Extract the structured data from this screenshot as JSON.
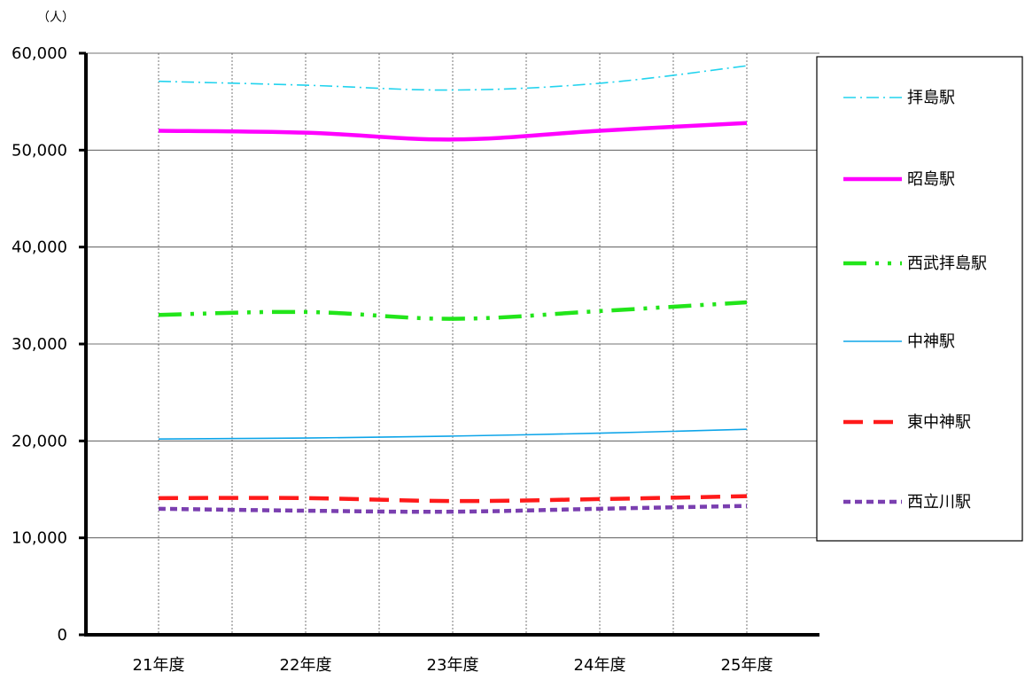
{
  "chart_data": {
    "type": "line",
    "title": "",
    "ylabel": "（人）",
    "xlabel": "",
    "categories": [
      "21年度",
      "22年度",
      "23年度",
      "24年度",
      "25年度"
    ],
    "ylim": [
      0,
      60000
    ],
    "yticks": [
      0,
      10000,
      20000,
      30000,
      40000,
      50000,
      60000
    ],
    "ytick_labels": [
      "0",
      "10,000",
      "20,000",
      "30,000",
      "40,000",
      "50,000",
      "60,000"
    ],
    "grid": true,
    "legend_position": "right",
    "series": [
      {
        "name": "拝島駅",
        "values": [
          57100,
          56700,
          56200,
          56900,
          58700
        ],
        "color": "#22d3ee",
        "dash": "dash-dot-thin"
      },
      {
        "name": "昭島駅",
        "values": [
          52000,
          51800,
          51100,
          52000,
          52800
        ],
        "color": "#ff00ff",
        "dash": "solid-thick"
      },
      {
        "name": "西武拝島駅",
        "values": [
          33000,
          33300,
          32600,
          33400,
          34300
        ],
        "color": "#22e51a",
        "dash": "dash-dot-dot-thick"
      },
      {
        "name": "中神駅",
        "values": [
          20200,
          20300,
          20500,
          20800,
          21200
        ],
        "color": "#0ea5e9",
        "dash": "solid-thin"
      },
      {
        "name": "東中神駅",
        "values": [
          14100,
          14100,
          13800,
          14000,
          14300
        ],
        "color": "#ff1a1a",
        "dash": "long-dash"
      },
      {
        "name": "西立川駅",
        "values": [
          13000,
          12800,
          12700,
          13000,
          13300
        ],
        "color": "#7a3fb0",
        "dash": "short-dash"
      }
    ]
  }
}
